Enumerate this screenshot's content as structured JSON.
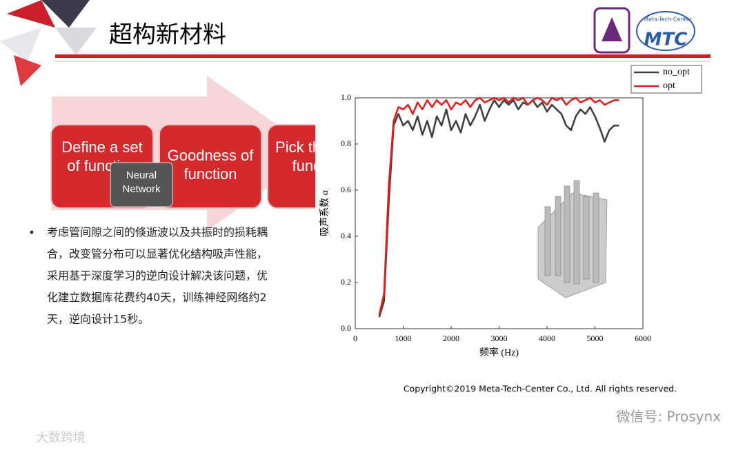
{
  "header": {
    "title": "超构新材料",
    "logo_text": "MTC",
    "logo_subtext": "Meta-Tech-Center"
  },
  "flow": {
    "boxes": [
      "Define a set of function",
      "Goodness of function",
      "Pick the best function"
    ],
    "overlay": "Neural Network"
  },
  "bullet": {
    "lines": [
      "考虑管间隙之间的倏逝波以及共振时的损耗耦",
      "合，改变管分布可以显著优化结构吸声性能，",
      "采用基于深度学习的逆向设计解决该问题，优",
      "化建立数据库花费约40天，训练神经网络约2",
      "天，逆向设计15秒。"
    ]
  },
  "chart_data": {
    "type": "line",
    "x_label": "频率 (Hz)",
    "y_label": "吸声系数 α",
    "x": [
      500,
      600,
      700,
      800,
      900,
      1000,
      1100,
      1200,
      1300,
      1400,
      1500,
      1600,
      1700,
      1800,
      1900,
      2000,
      2100,
      2200,
      2300,
      2400,
      2500,
      2600,
      2700,
      2800,
      2900,
      3000,
      3100,
      3200,
      3300,
      3400,
      3500,
      3600,
      3700,
      3800,
      3900,
      4000,
      4100,
      4200,
      4300,
      4400,
      4500,
      4600,
      4700,
      4800,
      4900,
      5000,
      5100,
      5200,
      5300,
      5400,
      5500
    ],
    "series": [
      {
        "name": "no_opt",
        "color": "#404040",
        "values": [
          0.05,
          0.12,
          0.55,
          0.88,
          0.93,
          0.88,
          0.9,
          0.86,
          0.92,
          0.84,
          0.9,
          0.83,
          0.92,
          0.88,
          0.95,
          0.86,
          0.9,
          0.85,
          0.93,
          0.88,
          0.92,
          0.97,
          0.9,
          0.95,
          0.99,
          0.96,
          0.99,
          0.97,
          0.99,
          0.95,
          0.98,
          0.97,
          0.99,
          0.96,
          0.98,
          0.94,
          0.97,
          0.95,
          0.93,
          0.88,
          0.86,
          0.92,
          0.95,
          0.93,
          0.96,
          0.92,
          0.87,
          0.81,
          0.86,
          0.88,
          0.88
        ]
      },
      {
        "name": "opt",
        "color": "#e02020",
        "values": [
          0.06,
          0.15,
          0.62,
          0.9,
          0.96,
          0.95,
          0.97,
          0.93,
          0.98,
          0.95,
          0.99,
          0.96,
          0.99,
          0.97,
          0.99,
          0.95,
          0.98,
          0.97,
          0.99,
          0.96,
          0.99,
          1.0,
          0.98,
          0.99,
          1.0,
          0.99,
          1.0,
          0.98,
          1.0,
          0.99,
          1.0,
          0.97,
          0.99,
          1.0,
          0.99,
          0.97,
          1.0,
          0.99,
          1.0,
          0.97,
          0.99,
          1.0,
          0.98,
          0.99,
          1.0,
          0.98,
          0.99,
          0.97,
          0.98,
          0.99,
          0.99
        ]
      }
    ],
    "xlim": [
      0,
      6000
    ],
    "xticks": [
      0,
      1000,
      2000,
      3000,
      4000,
      5000,
      6000
    ],
    "ylim": [
      0,
      1
    ],
    "yticks": [
      {
        "value": 0,
        "label": "0.0"
      },
      0.2,
      0.4,
      0.6,
      0.8,
      {
        "value": 1,
        "label": "1.0"
      }
    ],
    "legend": "top-right"
  },
  "copyright": "Copyright©2019  Meta-Tech-Center Co., Ltd. All rights reserved.",
  "watermark": {
    "right": "微信号: Prosynx",
    "left": "大数跨境"
  }
}
